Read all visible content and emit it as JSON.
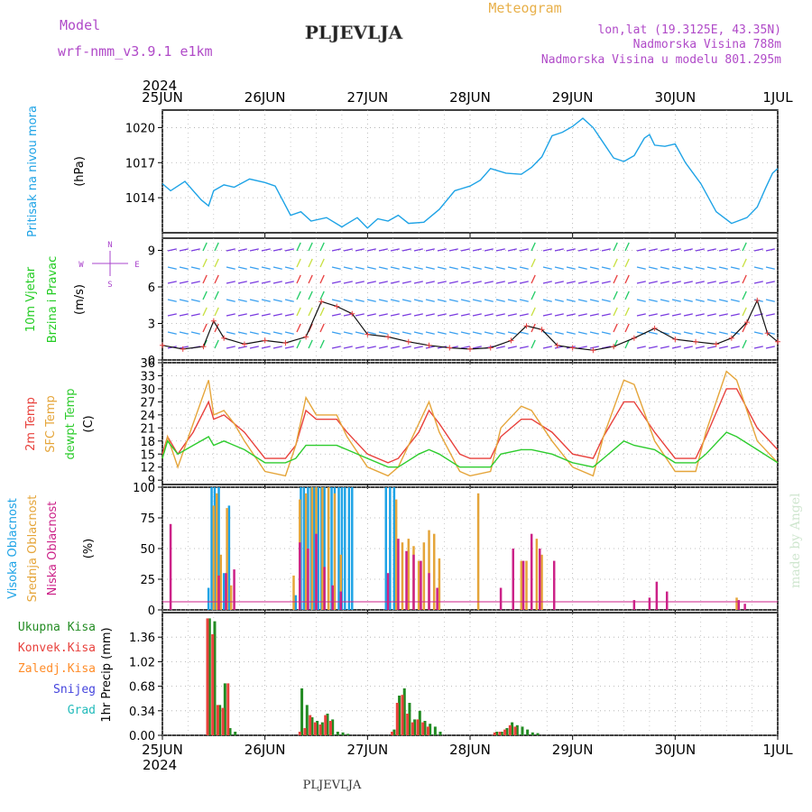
{
  "header": {
    "model_label": "Model",
    "model_name": "wrf-nmm_v3.9.1 e1km",
    "station": "PLJEVLJA",
    "title": "Meteogram",
    "coords": "lon,lat (19.3125E, 43.35N)",
    "elevation": "Nadmorska Visina 788m",
    "model_elevation": "Nadmorska Visina u modelu 801.295m",
    "year_top": "2024",
    "year_bottom": "2024",
    "footer_station": "PLJEVLJA",
    "watermark": "made by Angel"
  },
  "dates": [
    "25JUN",
    "26JUN",
    "27JUN",
    "28JUN",
    "29JUN",
    "30JUN",
    "1JUL"
  ],
  "colors": {
    "pressure": "#1ea3e6",
    "wind_label": "#22cc22",
    "wind_axis_label": "#aa44cc",
    "temp2m": "#e8413c",
    "sfc": "#e5a53a",
    "dewpt": "#2ecc2e",
    "high_cloud": "#1ea3e6",
    "mid_cloud": "#e5a53a",
    "low_cloud": "#cc2288",
    "total_precip": "#228b22",
    "conv_precip": "#e8413c",
    "frozen_precip": "#ff8c28",
    "snow": "#4444dd",
    "hail": "#22bbbb",
    "header_purple": "#b04ac8",
    "header_orange": "#e8b04a"
  },
  "chart_data": [
    {
      "type": "line",
      "ylabel_lines": [
        "Pritisak na nivou mora"
      ],
      "unit": "(hPa)",
      "yticks": [
        1014,
        1017,
        1020
      ],
      "ylim": [
        1011,
        1021.5
      ],
      "grid": true,
      "series": [
        {
          "name": "Pritisak na nivou mora",
          "x": [
            0,
            0.08,
            0.22,
            0.38,
            0.45,
            0.5,
            0.6,
            0.7,
            0.85,
            1.0,
            1.1,
            1.25,
            1.35,
            1.45,
            1.6,
            1.75,
            1.9,
            2.0,
            2.1,
            2.2,
            2.3,
            2.4,
            2.55,
            2.7,
            2.85,
            3.0,
            3.1,
            3.2,
            3.35,
            3.5,
            3.6,
            3.7,
            3.8,
            3.9,
            4.0,
            4.1,
            4.2,
            4.3,
            4.4,
            4.5,
            4.6,
            4.7,
            4.75,
            4.8,
            4.9,
            5.0,
            5.1,
            5.15,
            5.25,
            5.4,
            5.55,
            5.7,
            5.8,
            5.88,
            5.95,
            6.0
          ],
          "y": [
            1015.2,
            1014.6,
            1015.4,
            1013.8,
            1013.3,
            1014.6,
            1015.1,
            1014.9,
            1015.6,
            1015.3,
            1015.0,
            1012.5,
            1012.8,
            1012.0,
            1012.3,
            1011.5,
            1012.3,
            1011.4,
            1012.2,
            1012.0,
            1012.5,
            1011.8,
            1011.9,
            1013.0,
            1014.6,
            1015.0,
            1015.5,
            1016.5,
            1016.1,
            1016.0,
            1016.6,
            1017.5,
            1019.3,
            1019.6,
            1020.1,
            1020.8,
            1020.0,
            1018.7,
            1017.4,
            1017.1,
            1017.6,
            1019.1,
            1019.4,
            1018.5,
            1018.4,
            1018.6,
            1017.0,
            1016.4,
            1015.2,
            1012.8,
            1011.8,
            1012.3,
            1013.2,
            1014.8,
            1016.1,
            1016.5
          ]
        }
      ]
    },
    {
      "type": "line",
      "ylabel_lines": [
        "10m Vjetar",
        "Brzina i Pravac"
      ],
      "unit": "(m/s)",
      "compass": "N, E, S, W",
      "yticks": [
        0,
        3,
        6,
        9
      ],
      "ylim": [
        0,
        10
      ],
      "grid": true,
      "series": [
        {
          "name": "Brzina",
          "x": [
            0,
            0.2,
            0.4,
            0.5,
            0.6,
            0.8,
            1.0,
            1.2,
            1.4,
            1.55,
            1.7,
            1.85,
            2.0,
            2.2,
            2.4,
            2.6,
            2.8,
            3.0,
            3.2,
            3.4,
            3.55,
            3.7,
            3.85,
            4.0,
            4.2,
            4.4,
            4.6,
            4.8,
            5.0,
            5.2,
            5.4,
            5.55,
            5.7,
            5.8,
            5.9,
            6.0
          ],
          "y": [
            1.2,
            0.9,
            1.1,
            3.2,
            1.8,
            1.3,
            1.6,
            1.4,
            1.9,
            4.8,
            4.4,
            3.8,
            2.1,
            1.9,
            1.5,
            1.2,
            1.0,
            0.9,
            1.0,
            1.6,
            2.8,
            2.5,
            1.2,
            1.0,
            0.8,
            1.1,
            1.8,
            2.6,
            1.7,
            1.5,
            1.3,
            1.8,
            3.1,
            4.9,
            2.2,
            1.5
          ]
        }
      ]
    },
    {
      "type": "line",
      "ylabel_lines": [
        "2m Temp",
        "SFC Temp",
        "dewpt Temp"
      ],
      "unit": "(C)",
      "yticks": [
        9,
        12,
        15,
        18,
        21,
        24,
        27,
        30,
        33,
        36
      ],
      "ylim": [
        8,
        36
      ],
      "grid": true,
      "series": [
        {
          "name": "2m Temp",
          "x": [
            0,
            0.05,
            0.15,
            0.3,
            0.45,
            0.5,
            0.6,
            0.7,
            0.8,
            1.0,
            1.2,
            1.3,
            1.4,
            1.5,
            1.7,
            1.8,
            2.0,
            2.2,
            2.3,
            2.5,
            2.6,
            2.7,
            2.9,
            3.0,
            3.2,
            3.3,
            3.5,
            3.6,
            3.8,
            4.0,
            4.2,
            4.3,
            4.5,
            4.6,
            4.8,
            5.0,
            5.2,
            5.3,
            5.5,
            5.6,
            5.8,
            6.0
          ],
          "y": [
            15,
            19,
            15,
            20,
            27,
            23,
            24,
            22,
            20,
            14,
            14,
            17,
            25,
            23,
            23,
            20,
            15,
            13,
            14,
            20,
            25,
            22,
            15,
            14,
            14,
            19,
            23,
            23,
            20,
            15,
            14,
            19,
            27,
            27,
            20,
            14,
            14,
            19,
            30,
            30,
            21,
            16
          ]
        },
        {
          "name": "SFC Temp",
          "x": [
            0,
            0.05,
            0.15,
            0.3,
            0.45,
            0.5,
            0.6,
            0.7,
            0.8,
            1.0,
            1.2,
            1.3,
            1.4,
            1.5,
            1.7,
            1.8,
            2.0,
            2.2,
            2.3,
            2.5,
            2.6,
            2.7,
            2.9,
            3.0,
            3.2,
            3.3,
            3.5,
            3.6,
            3.8,
            4.0,
            4.2,
            4.3,
            4.5,
            4.6,
            4.8,
            5.0,
            5.2,
            5.3,
            5.5,
            5.6,
            5.8,
            6.0
          ],
          "y": [
            14,
            19,
            12,
            22,
            32,
            24,
            25,
            22,
            18,
            11,
            10,
            17,
            28,
            24,
            24,
            19,
            12,
            10,
            12,
            22,
            27,
            20,
            11,
            10,
            11,
            21,
            26,
            25,
            18,
            12,
            10,
            19,
            32,
            31,
            18,
            11,
            11,
            20,
            34,
            32,
            18,
            13
          ]
        },
        {
          "name": "dewpt Temp",
          "x": [
            0,
            0.05,
            0.15,
            0.3,
            0.45,
            0.5,
            0.6,
            0.7,
            0.8,
            1.0,
            1.2,
            1.3,
            1.4,
            1.5,
            1.7,
            1.8,
            2.0,
            2.2,
            2.3,
            2.5,
            2.6,
            2.7,
            2.9,
            3.0,
            3.2,
            3.3,
            3.5,
            3.6,
            3.8,
            4.0,
            4.2,
            4.3,
            4.5,
            4.6,
            4.8,
            5.0,
            5.2,
            5.3,
            5.5,
            5.6,
            5.8,
            6.0
          ],
          "y": [
            14,
            18,
            15,
            17,
            19,
            17,
            18,
            17,
            16,
            13,
            13,
            14,
            17,
            17,
            17,
            16,
            14,
            12,
            12,
            15,
            16,
            15,
            12,
            12,
            12,
            15,
            16,
            16,
            15,
            13,
            12,
            14,
            18,
            17,
            16,
            13,
            13,
            15,
            20,
            19,
            16,
            13
          ]
        }
      ]
    },
    {
      "type": "bar",
      "ylabel_lines": [
        "Visoka Oblacnost",
        "Srednja Oblacnost",
        "Niska Oblacnost"
      ],
      "unit": "(%)",
      "yticks": [
        0,
        25,
        50,
        75,
        100
      ],
      "ylim": [
        0,
        100
      ],
      "grid": true,
      "series": [
        {
          "name": "Visoka Oblacnost",
          "x": [
            0.45,
            0.48,
            0.51,
            0.55,
            0.6,
            0.65,
            1.3,
            1.35,
            1.38,
            1.42,
            1.45,
            1.48,
            1.52,
            1.55,
            1.58,
            1.62,
            1.65,
            1.68,
            1.72,
            1.75,
            1.78,
            1.82,
            1.85,
            2.18,
            2.22,
            2.26
          ],
          "y": [
            18,
            100,
            100,
            100,
            30,
            85,
            12,
            100,
            100,
            100,
            100,
            100,
            100,
            100,
            100,
            100,
            100,
            100,
            100,
            100,
            100,
            100,
            100,
            100,
            100,
            100
          ]
        },
        {
          "name": "Srednja Oblacnost",
          "x": [
            0.5,
            0.53,
            0.57,
            0.63,
            0.67,
            1.28,
            1.34,
            1.4,
            1.46,
            1.5,
            1.56,
            1.62,
            1.68,
            1.74,
            2.28,
            2.34,
            2.4,
            2.45,
            2.5,
            2.55,
            2.6,
            2.65,
            2.7,
            3.08,
            3.5,
            3.55,
            3.6,
            3.65,
            3.7,
            5.6
          ],
          "y": [
            85,
            95,
            45,
            83,
            20,
            28,
            90,
            95,
            100,
            100,
            100,
            100,
            95,
            45,
            90,
            55,
            58,
            52,
            40,
            55,
            65,
            62,
            42,
            95,
            40,
            40,
            55,
            58,
            45,
            10
          ]
        },
        {
          "name": "Niska Oblacnost",
          "x": [
            0.08,
            0.55,
            0.62,
            0.7,
            1.34,
            1.42,
            1.5,
            1.58,
            1.66,
            1.74,
            2.2,
            2.3,
            2.38,
            2.45,
            2.52,
            2.6,
            2.68,
            3.3,
            3.42,
            3.52,
            3.6,
            3.68,
            3.82,
            4.6,
            4.75,
            4.82,
            4.92,
            5.62,
            5.68
          ],
          "y": [
            70,
            28,
            30,
            33,
            55,
            50,
            62,
            35,
            20,
            15,
            30,
            58,
            48,
            45,
            40,
            30,
            18,
            18,
            50,
            40,
            62,
            50,
            40,
            8,
            10,
            23,
            15,
            8,
            5
          ]
        }
      ]
    },
    {
      "type": "bar",
      "ylabel_lines": [
        "Ukupna Kisa",
        "Konvek.Kisa",
        "Zaledj.Kisa",
        "Snijeg",
        "Grad"
      ],
      "unit": "1hr Precip (mm)",
      "yticks": [
        0,
        0.34,
        0.68,
        1.02,
        1.36
      ],
      "ylim": [
        0,
        1.7
      ],
      "grid": true,
      "series": [
        {
          "name": "Ukupna Kisa",
          "x": [
            0.46,
            0.51,
            0.56,
            0.61,
            0.66,
            0.71,
            1.36,
            1.41,
            1.46,
            1.51,
            1.56,
            1.61,
            1.66,
            1.71,
            1.76,
            1.81,
            2.26,
            2.31,
            2.36,
            2.41,
            2.46,
            2.51,
            2.56,
            2.61,
            2.66,
            2.71,
            3.26,
            3.31,
            3.36,
            3.41,
            3.46,
            3.51,
            3.56,
            3.61,
            3.66
          ],
          "y": [
            1.62,
            1.58,
            0.42,
            0.72,
            0.1,
            0.05,
            0.65,
            0.42,
            0.25,
            0.2,
            0.18,
            0.3,
            0.22,
            0.05,
            0.04,
            0.02,
            0.08,
            0.55,
            0.65,
            0.45,
            0.22,
            0.34,
            0.2,
            0.16,
            0.12,
            0.05,
            0.05,
            0.05,
            0.1,
            0.18,
            0.14,
            0.12,
            0.08,
            0.04,
            0.03
          ]
        },
        {
          "name": "Konvek.Kisa",
          "x": [
            0.44,
            0.49,
            0.54,
            0.59,
            0.64,
            1.34,
            1.39,
            1.44,
            1.49,
            1.54,
            1.59,
            1.64,
            2.24,
            2.29,
            2.34,
            2.39,
            2.44,
            2.49,
            2.54,
            2.59,
            3.24,
            3.29,
            3.34,
            3.39,
            3.44
          ],
          "y": [
            1.62,
            1.4,
            0.42,
            0.38,
            0.72,
            0.05,
            0.1,
            0.28,
            0.18,
            0.15,
            0.28,
            0.2,
            0.05,
            0.45,
            0.56,
            0.3,
            0.18,
            0.22,
            0.18,
            0.12,
            0.04,
            0.05,
            0.08,
            0.14,
            0.12
          ]
        }
      ]
    }
  ]
}
